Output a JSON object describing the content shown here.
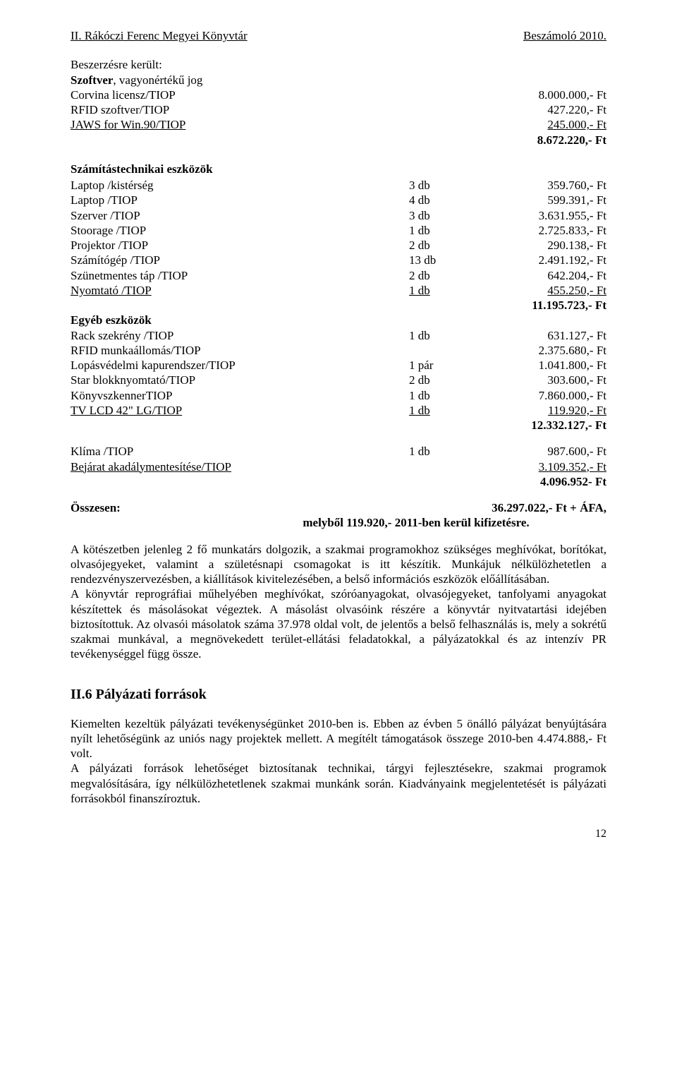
{
  "header": {
    "left": "II. Rákóczi Ferenc Megyei Könyvtár",
    "right": "Beszámoló 2010."
  },
  "sections": {
    "t1": "Beszerzésre került:",
    "t2": "Szoftver",
    "t2b": ", vagyonértékű jog",
    "software": [
      {
        "name": "Corvina licensz/TIOP",
        "val": "8.000.000,- Ft"
      },
      {
        "name": "RFID szoftver/TIOP",
        "val": "427.220,- Ft"
      }
    ],
    "jaws": {
      "name": "JAWS for Win.90/TIOP",
      "val": "245.000,- Ft"
    },
    "softTotal": "8.672.220,- Ft",
    "compTitle": "Számítástechnikai eszközök",
    "comp": [
      {
        "name": "Laptop /kistérség",
        "qty": "3 db",
        "val": "359.760,- Ft"
      },
      {
        "name": "Laptop /TIOP",
        "qty": "4 db",
        "val": "599.391,- Ft"
      },
      {
        "name": "Szerver /TIOP",
        "qty": "3 db",
        "val": "3.631.955,- Ft"
      },
      {
        "name": "Stoorage /TIOP",
        "qty": "1 db",
        "val": "2.725.833,- Ft"
      },
      {
        "name": "Projektor /TIOP",
        "qty": "2 db",
        "val": "290.138,- Ft"
      },
      {
        "name": "Számítógép /TIOP",
        "qty": "13 db",
        "val": "2.491.192,- Ft"
      },
      {
        "name": "Szünetmentes táp /TIOP",
        "qty": "2 db",
        "val": "642.204,- Ft"
      }
    ],
    "compLast": {
      "name": "Nyomtató /TIOP",
      "qty": "1 db",
      "val": "455.250,- Ft"
    },
    "compTotal": "11.195.723,- Ft",
    "otherTitle": "Egyéb eszközök",
    "other": [
      {
        "name": "Rack szekrény /TIOP",
        "qty": "1 db",
        "val": "631.127,- Ft"
      },
      {
        "name": "RFID munkaállomás/TIOP",
        "qty": "",
        "val": "2.375.680,- Ft"
      },
      {
        "name": "Lopásvédelmi kapurendszer/TIOP",
        "qty": "1 pár",
        "val": "1.041.800,- Ft"
      },
      {
        "name": "Star blokknyomtató/TIOP",
        "qty": "2 db",
        "val": "303.600,- Ft"
      },
      {
        "name": "KönyvszkennerTIOP",
        "qty": "1 db",
        "val": "7.860.000,- Ft"
      }
    ],
    "otherLast": {
      "name": "TV LCD 42\" LG/TIOP",
      "qty": "1 db",
      "val": "119.920,- Ft"
    },
    "otherTotal": "12.332.127,- Ft",
    "klima": {
      "name": "Klíma /TIOP",
      "qty": "1 db",
      "val": "987.600,- Ft"
    },
    "bejarat": {
      "name": "Bejárat akadálymentesítése/TIOP",
      "val": "3.109.352,- Ft"
    },
    "klimaTotal": "4.096.952- Ft",
    "grandLabel": "Összesen:",
    "grandVal1": "36.297.022,- Ft + ÁFA,",
    "grandVal2": "melyből 119.920,-  2011-ben kerül kifizetésre.",
    "para1": "A kötészetben jelenleg 2 fő munkatárs dolgozik, a szakmai programokhoz szükséges meghívókat, borítókat, olvasójegyeket, valamint a születésnapi csomagokat is itt készítik. Munkájuk nélkülözhetetlen a rendezvényszervezésben, a kiállítások kivitelezésében, a belső információs eszközök előállításában.",
    "para2": "A könyvtár reprográfiai műhelyében meghívókat, szóróanyagokat, olvasójegyeket, tanfolyami anyagokat készítettek és másolásokat végeztek. A másolást olvasóink részére a könyvtár nyitvatartási idejében biztosítottuk. Az olvasói másolatok száma 37.978 oldal volt, de jelentős a belső felhasználás is, mely a sokrétű szakmai munkával, a megnövekedett terület-ellátási feladatokkal, a pályázatokkal és az intenzív PR tevékenységgel függ össze.",
    "h2": "II.6 Pályázati források",
    "para3": "Kiemelten kezeltük pályázati tevékenységünket 2010-ben is. Ebben az évben 5 önálló pályázat benyújtására nyílt lehetőségünk az uniós nagy projektek mellett. A megítélt támogatások összege 2010-ben 4.474.888,- Ft volt.",
    "para4": "A pályázati források lehetőséget biztosítanak technikai, tárgyi fejlesztésekre, szakmai programok megvalósítására, így nélkülözhetetlenek szakmai munkánk során. Kiadványaink megjelentetését is pályázati forrásokból finanszíroztuk.",
    "pageNum": "12"
  }
}
